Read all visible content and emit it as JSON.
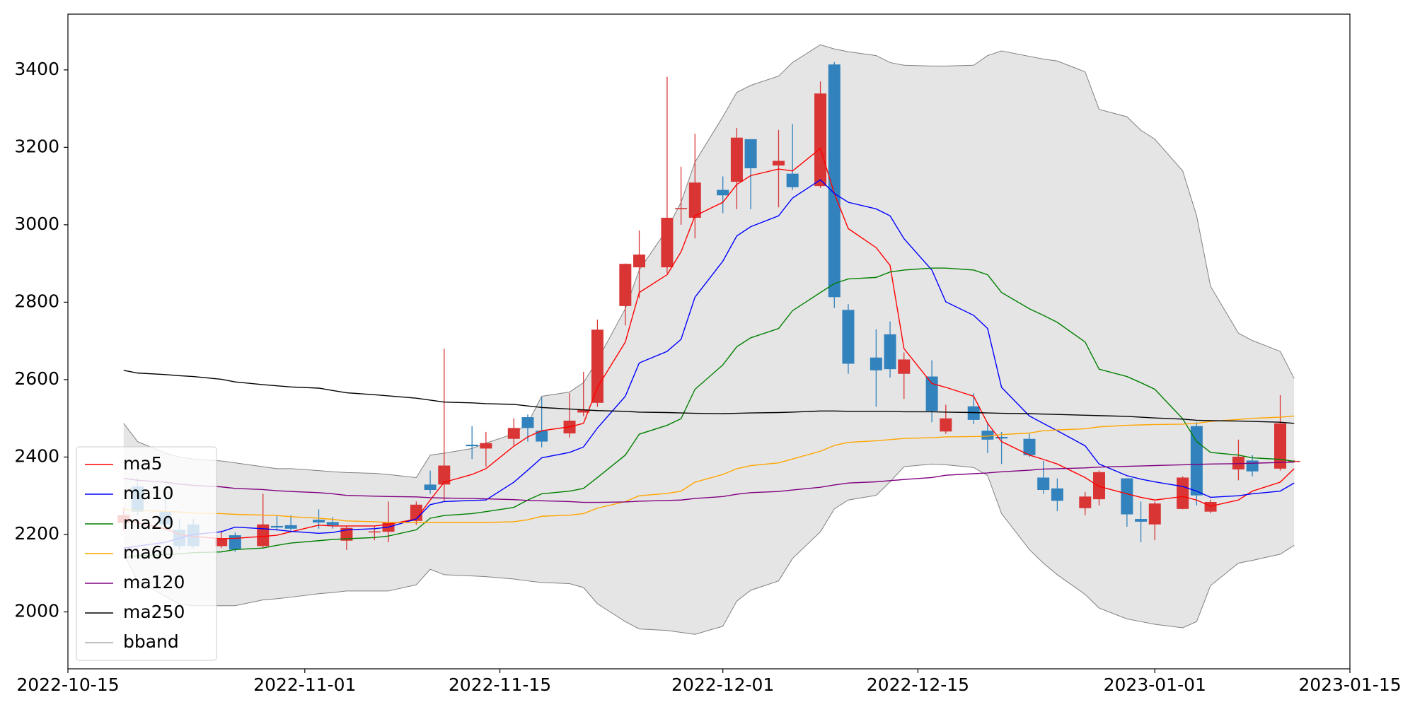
{
  "chart_data": {
    "type": "candlestick",
    "x": [
      "2022-10-19",
      "2022-10-20",
      "2022-10-22",
      "2022-10-23",
      "2022-10-24",
      "2022-10-26",
      "2022-10-27",
      "2022-10-29",
      "2022-10-30",
      "2022-10-31",
      "2022-11-02",
      "2022-11-03",
      "2022-11-04",
      "2022-11-06",
      "2022-11-07",
      "2022-11-09",
      "2022-11-10",
      "2022-11-11",
      "2022-11-13",
      "2022-11-14",
      "2022-11-16",
      "2022-11-17",
      "2022-11-18",
      "2022-11-20",
      "2022-11-21",
      "2022-11-22",
      "2022-11-24",
      "2022-11-25",
      "2022-11-27",
      "2022-11-28",
      "2022-11-29",
      "2022-12-01",
      "2022-12-02",
      "2022-12-03",
      "2022-12-05",
      "2022-12-06",
      "2022-12-08",
      "2022-12-09",
      "2022-12-10",
      "2022-12-12",
      "2022-12-13",
      "2022-12-14",
      "2022-12-16",
      "2022-12-17",
      "2022-12-19",
      "2022-12-20",
      "2022-12-21",
      "2022-12-23",
      "2022-12-24",
      "2022-12-25",
      "2022-12-27",
      "2022-12-28",
      "2022-12-30",
      "2022-12-31",
      "2023-01-01",
      "2023-01-03",
      "2023-01-04",
      "2023-01-05",
      "2023-01-07",
      "2023-01-08",
      "2023-01-10",
      "2023-01-11"
    ],
    "open": [
      2230,
      2324,
      2259,
      2212,
      2226,
      2170,
      2198,
      2170,
      2222,
      2224,
      2238,
      2232,
      2184,
      2206,
      2207,
      2235,
      2329,
      2329,
      2432,
      2422,
      2447,
      2503,
      2468,
      2461,
      2515,
      2540,
      2790,
      2890,
      2890,
      3040,
      3018,
      3090,
      3111,
      3221,
      3153,
      3132,
      3100,
      3414,
      2780,
      2657,
      2717,
      2615,
      2608,
      2466,
      2531,
      2468,
      2452,
      2447,
      2347,
      2319,
      2268,
      2291,
      2345,
      2240,
      2226,
      2266,
      2480,
      2259,
      2368,
      2391,
      2370,
      2388
    ],
    "high": [
      2270,
      2345,
      2310,
      2240,
      2240,
      2210,
      2205,
      2305,
      2250,
      2250,
      2265,
      2245,
      2222,
      2222,
      2285,
      2285,
      2365,
      2680,
      2480,
      2465,
      2500,
      2510,
      2555,
      2565,
      2620,
      2755,
      2900,
      2985,
      3382,
      3150,
      3235,
      3125,
      3250,
      3220,
      3245,
      3260,
      3370,
      3420,
      2795,
      2730,
      2750,
      2670,
      2650,
      2535,
      2565,
      2490,
      2465,
      2460,
      2390,
      2345,
      2310,
      2365,
      2345,
      2285,
      2285,
      2350,
      2490,
      2290,
      2445,
      2405,
      2560,
      2392
    ],
    "low": [
      2210,
      2250,
      2210,
      2160,
      2165,
      2165,
      2155,
      2165,
      2210,
      2210,
      2215,
      2215,
      2160,
      2185,
      2180,
      2225,
      2305,
      2285,
      2395,
      2375,
      2430,
      2440,
      2425,
      2450,
      2505,
      2530,
      2740,
      2810,
      2875,
      3000,
      2965,
      3030,
      3040,
      3040,
      3045,
      3090,
      3095,
      2785,
      2615,
      2530,
      2605,
      2550,
      2490,
      2460,
      2485,
      2410,
      2382,
      2400,
      2305,
      2260,
      2250,
      2275,
      2220,
      2180,
      2185,
      2265,
      2275,
      2255,
      2340,
      2350,
      2365,
      2386
    ],
    "close": [
      2250,
      2259,
      2226,
      2170,
      2170,
      2190,
      2161,
      2226,
      2218,
      2215,
      2231,
      2224,
      2217,
      2208,
      2231,
      2277,
      2315,
      2378,
      2428,
      2436,
      2475,
      2475,
      2440,
      2494,
      2522,
      2729,
      2899,
      2923,
      3018,
      3043,
      3109,
      3076,
      3225,
      3146,
      3165,
      3097,
      3339,
      2813,
      2641,
      2624,
      2627,
      2652,
      2519,
      2500,
      2496,
      2445,
      2448,
      2405,
      2315,
      2287,
      2298,
      2361,
      2252,
      2233,
      2280,
      2347,
      2301,
      2284,
      2401,
      2363,
      2487,
      2390
    ],
    "up_color": "#d93535",
    "down_color": "#3182bd",
    "series": [
      {
        "name": "ma5",
        "color": "#ff0000",
        "values": [
          2240,
          2230,
          2215,
          2200,
          2195,
          2189,
          2190,
          2195,
          2198,
          2207,
          2224,
          2222,
          2222,
          2222,
          2226,
          2240,
          2289,
          2335,
          2355,
          2370,
          2428,
          2452,
          2468,
          2478,
          2487,
          2580,
          2697,
          2825,
          2871,
          2930,
          3023,
          3058,
          3104,
          3127,
          3144,
          3139,
          3197,
          3081,
          2990,
          2941,
          2895,
          2680,
          2590,
          2580,
          2557,
          2487,
          2440,
          2405,
          2394,
          2382,
          2347,
          2324,
          2305,
          2296,
          2289,
          2298,
          2289,
          2273,
          2289,
          2312,
          2335,
          2370
        ]
      },
      {
        "name": "ma10",
        "color": "#0000ff",
        "values": [
          2165,
          2170,
          2180,
          2190,
          2200,
          2207,
          2219,
          2215,
          2212,
          2208,
          2203,
          2205,
          2212,
          2215,
          2219,
          2240,
          2277,
          2285,
          2288,
          2289,
          2335,
          2366,
          2398,
          2412,
          2426,
          2475,
          2557,
          2643,
          2673,
          2704,
          2813,
          2906,
          2971,
          2995,
          3023,
          3069,
          3116,
          3081,
          3058,
          3041,
          3023,
          2964,
          2883,
          2801,
          2766,
          2732,
          2580,
          2506,
          2487,
          2468,
          2429,
          2382,
          2352,
          2343,
          2336,
          2324,
          2312,
          2296,
          2300,
          2305,
          2312,
          2333
        ]
      },
      {
        "name": "ma20",
        "color": "#008000",
        "values": [
          2140,
          2145,
          2148,
          2150,
          2153,
          2155,
          2161,
          2165,
          2172,
          2178,
          2184,
          2187,
          2189,
          2192,
          2196,
          2212,
          2242,
          2249,
          2254,
          2259,
          2270,
          2289,
          2305,
          2312,
          2319,
          2347,
          2405,
          2459,
          2482,
          2499,
          2575,
          2638,
          2685,
          2708,
          2732,
          2778,
          2825,
          2848,
          2860,
          2864,
          2878,
          2883,
          2888,
          2888,
          2883,
          2871,
          2825,
          2783,
          2766,
          2748,
          2697,
          2627,
          2608,
          2592,
          2575,
          2499,
          2440,
          2412,
          2405,
          2398,
          2394,
          2389
        ]
      },
      {
        "name": "ma60",
        "color": "#ffa500",
        "values": [
          2265,
          2262,
          2260,
          2258,
          2255,
          2254,
          2252,
          2250,
          2249,
          2246,
          2242,
          2239,
          2235,
          2233,
          2231,
          2231,
          2231,
          2231,
          2231,
          2231,
          2233,
          2238,
          2247,
          2250,
          2254,
          2268,
          2285,
          2300,
          2306,
          2312,
          2335,
          2355,
          2370,
          2378,
          2385,
          2395,
          2415,
          2430,
          2438,
          2442,
          2445,
          2448,
          2450,
          2452,
          2453,
          2454,
          2458,
          2462,
          2468,
          2470,
          2473,
          2478,
          2482,
          2483,
          2484,
          2485,
          2487,
          2492,
          2497,
          2500,
          2503,
          2506
        ]
      },
      {
        "name": "ma120",
        "color": "#800080",
        "values": [
          2345,
          2340,
          2335,
          2330,
          2327,
          2323,
          2319,
          2316,
          2313,
          2311,
          2308,
          2305,
          2301,
          2299,
          2298,
          2297,
          2295,
          2294,
          2293,
          2292,
          2290,
          2288,
          2287,
          2285,
          2283,
          2283,
          2284,
          2286,
          2288,
          2289,
          2293,
          2298,
          2304,
          2308,
          2311,
          2315,
          2322,
          2328,
          2333,
          2336,
          2339,
          2342,
          2347,
          2353,
          2357,
          2359,
          2362,
          2366,
          2369,
          2370,
          2372,
          2374,
          2376,
          2377,
          2378,
          2380,
          2381,
          2382,
          2383,
          2384,
          2386,
          2387
        ]
      },
      {
        "name": "ma250",
        "color": "#000000",
        "values": [
          2624,
          2617,
          2613,
          2610,
          2608,
          2601,
          2594,
          2587,
          2584,
          2581,
          2578,
          2572,
          2566,
          2561,
          2558,
          2552,
          2547,
          2542,
          2540,
          2538,
          2536,
          2532,
          2528,
          2524,
          2522,
          2520,
          2518,
          2516,
          2515,
          2514,
          2513,
          2512,
          2513,
          2514,
          2515,
          2516,
          2519,
          2519,
          2518,
          2518,
          2518,
          2517,
          2517,
          2516,
          2515,
          2514,
          2513,
          2512,
          2511,
          2510,
          2508,
          2507,
          2505,
          2503,
          2501,
          2498,
          2495,
          2494,
          2493,
          2492,
          2490,
          2487
        ]
      },
      {
        "name": "bband",
        "color": "#808080",
        "fill": "#e5e5e5",
        "upper": [
          2487,
          2440,
          2410,
          2400,
          2395,
          2390,
          2385,
          2375,
          2370,
          2370,
          2365,
          2362,
          2360,
          2358,
          2355,
          2347,
          2405,
          2410,
          2422,
          2436,
          2460,
          2487,
          2557,
          2568,
          2592,
          2650,
          2783,
          2883,
          2988,
          3058,
          3162,
          3279,
          3342,
          3360,
          3384,
          3419,
          3465,
          3454,
          3447,
          3437,
          3419,
          3412,
          3410,
          3410,
          3412,
          3437,
          3449,
          3435,
          3428,
          3423,
          3395,
          3298,
          3279,
          3244,
          3221,
          3139,
          3023,
          2841,
          2720,
          2701,
          2673,
          2603
        ],
        "lower": [
          2150,
          2080,
          2040,
          2020,
          2016,
          2016,
          2016,
          2031,
          2034,
          2038,
          2047,
          2050,
          2054,
          2054,
          2054,
          2070,
          2110,
          2096,
          2093,
          2091,
          2085,
          2080,
          2076,
          2073,
          2063,
          2021,
          1975,
          1956,
          1952,
          1947,
          1942,
          1963,
          2028,
          2056,
          2080,
          2138,
          2207,
          2266,
          2289,
          2301,
          2336,
          2375,
          2382,
          2380,
          2373,
          2352,
          2254,
          2161,
          2126,
          2096,
          2045,
          2010,
          1982,
          1975,
          1968,
          1959,
          1975,
          2068,
          2126,
          2133,
          2149,
          2172
        ]
      }
    ],
    "xlim": [
      "2022-10-15",
      "2023-01-15"
    ],
    "xticks": [
      "2022-10-15",
      "2022-11-01",
      "2022-11-15",
      "2022-12-01",
      "2022-12-15",
      "2023-01-01",
      "2023-01-15"
    ],
    "ylim": [
      1853,
      3544
    ],
    "yticks": [
      2000,
      2200,
      2400,
      2600,
      2800,
      3000,
      3200,
      3400
    ],
    "grid": false,
    "legend": "lower left"
  }
}
